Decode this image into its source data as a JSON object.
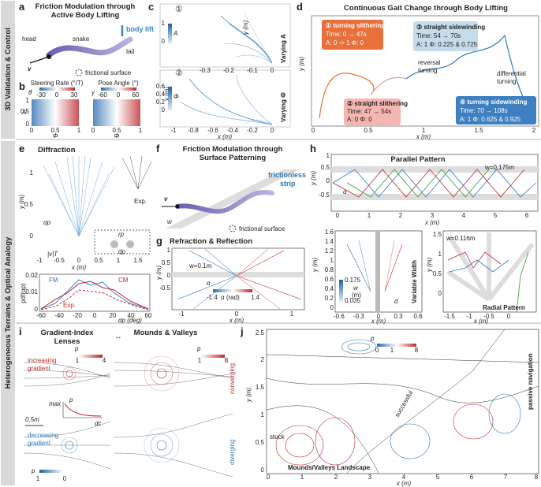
{
  "side_labels": [
    "3D Validation & Control",
    "Heterogeneous Terrains & Optical Analogy"
  ],
  "a": {
    "label": "a",
    "title": [
      "Friction Modulation through",
      "Active Body Lifting"
    ],
    "head": "head",
    "snake": "snake",
    "body_lift": "body lift",
    "tail": "tail",
    "v": "v",
    "surface": "frictional surface"
  },
  "b": {
    "label": "b",
    "cb1_title": "Steering Rate (°/T)",
    "cb1_ticks": [
      "-30",
      "0",
      "30"
    ],
    "cb2_title": "Pose Angle (°)",
    "cb2_ticks": [
      "-60",
      "0",
      "60"
    ],
    "sym1": "θ̇",
    "sym2": "γ",
    "ylabel": "A",
    "yticks": [
      "1",
      "0.5",
      "0"
    ],
    "xticks": [
      "0",
      "0.5",
      "1"
    ],
    "xlabel": "Φ"
  },
  "c": {
    "label": "c",
    "n1": "①",
    "n2": "②",
    "ylabel": "y (m)",
    "xlabel": "x (m)",
    "vary1": "Varying A",
    "vary2": "Varying Φ",
    "cb1_sym": "A",
    "cb1_ticks": [
      "1",
      "0"
    ],
    "cb2_sym": "Φ",
    "cb2_ticks": [
      "0.6",
      "0.4",
      "0.2",
      "0"
    ],
    "xticks1": [
      "-0.3",
      "-0.2",
      "-0.1",
      "0"
    ],
    "xticks2": [
      "-1",
      "-0.8",
      "-0.6",
      "-0.4",
      "-0.2",
      "0"
    ]
  },
  "d": {
    "label": "d",
    "title": "Continuous Gait Change through Body Lifting",
    "ylabel": "y (m)",
    "xlabel": "x (m)",
    "xticks": [
      "0",
      "0.5",
      "1",
      "1.5",
      "2"
    ],
    "boxes": [
      {
        "title": "① turning slithering",
        "time": "Time: 0 → 47s",
        "params": "A: 0 -> 1   Φ: 0"
      },
      {
        "title": "② straight slithering",
        "time": "Time: 47 → 54s",
        "params": "A: 0   Φ: 0"
      },
      {
        "title": "③ straight sidewinding",
        "time": "Time: 54 → 70s",
        "params": "A: 1   Φ: 0.225 & 0.725"
      },
      {
        "title": "④ turning sidewinding",
        "time": "Time: 70 → 108s",
        "params": "A: 1   Φ: 0.625 & 0.925"
      }
    ],
    "reversal": [
      "reversal",
      "turning"
    ],
    "differential": [
      "differential",
      "turning"
    ]
  },
  "e": {
    "label": "e",
    "title": "Diffraction",
    "exp": "Exp.",
    "ylabel": "y (m)",
    "xlabel": "x (m)",
    "xticks": [
      "-1",
      "-0.5",
      "0",
      "0.5",
      "1",
      "1.5"
    ],
    "yticks": [
      "1",
      "0.5",
      "0"
    ],
    "alpha_p": "αp",
    "vT": "|v|T",
    "r_p": "rp",
    "d_p": "dp",
    "legend": [
      "FM",
      "CM",
      "Exp."
    ],
    "pdf_label": "pdf(αp)",
    "pdf_xlabel": "αp (deg)",
    "pdf_xticks": [
      "-60",
      "-40",
      "-20",
      "0",
      "20",
      "40",
      "60"
    ],
    "pdf_yticks": [
      "0.02",
      "0.01",
      "0"
    ]
  },
  "f": {
    "label": "f",
    "title": "Friction Modulation through",
    "title2": "Surface Patterning",
    "v": "v",
    "strip": [
      "frictionless",
      "strip"
    ],
    "w": "w",
    "surface": "frictional surface"
  },
  "g": {
    "label": "g",
    "title": "Refraction & Reflection",
    "w": "w=0.1m",
    "ylabel": "y (m)",
    "xlabel": "x (m)",
    "alpha": "α",
    "cb_min": "-1.4",
    "cb_label": "α (rad)",
    "cb_max": "1.4",
    "xticks": [
      "-1",
      "0",
      "1"
    ],
    "yticks": [
      "1",
      "0.5",
      "0",
      "-0.5"
    ]
  },
  "h": {
    "label": "h",
    "title": "Parallel Pattern",
    "w": "w=0.175m",
    "alpha": "α",
    "ylabel": "y (m)",
    "xlabel": "x (m)",
    "yticks": [
      "1",
      "0.5",
      "0",
      "-0.5"
    ],
    "xticks": [
      "0",
      "1",
      "2",
      "3",
      "4",
      "5",
      "6"
    ],
    "vw_yticks": [
      "1.6",
      "1.4",
      "1.2",
      "1",
      "0.8",
      "0.6",
      "0.4",
      "0.2",
      "0"
    ],
    "vw_xticks": [
      "-0.6",
      "-0.3",
      "0",
      "0.3",
      "0.6"
    ],
    "vw_cb": [
      "0.175",
      "0.035"
    ],
    "vw_w": "w",
    "vw_unit": "(m)",
    "d": "d",
    "vw_title": "Variable Width",
    "radial_w": "w=0.116m",
    "radial_yticks": [
      "1.5",
      "1",
      "0.5",
      "0"
    ],
    "radial_xticks": [
      "-1.5",
      "-1",
      "-0.5",
      "0"
    ],
    "radial_title": "Radial Pattern"
  },
  "i": {
    "label": "i",
    "title1": [
      "Gradient-Index",
      "Lenses"
    ],
    "arrow": "↔",
    "title2": "Mounds & Valleys",
    "p": "p",
    "cb1": [
      "1",
      "4"
    ],
    "cb2": [
      "1",
      "8"
    ],
    "cb3": [
      "1",
      "0"
    ],
    "inc": [
      "increasing",
      "gradient"
    ],
    "converging": "converging",
    "max": "max",
    "dc": "dc",
    "scale": "0.5m",
    "dec": [
      "decreasing",
      "gradient"
    ],
    "diverging": "diverging"
  },
  "j": {
    "label": "j",
    "p": "p",
    "cb": [
      "0",
      "1",
      "8"
    ],
    "stuck": "stuck",
    "successful": "successful",
    "passive": "passive navigation",
    "landscape": "Mounds/Valleys Landscape",
    "ylabel": "y (m)",
    "xlabel": "x (m)",
    "yticks": [
      "2.5",
      "2",
      "1.5",
      "1",
      "0.5",
      "0"
    ],
    "xticks": [
      "0",
      "1",
      "2",
      "3",
      "4",
      "5",
      "6",
      "7",
      "8"
    ]
  }
}
